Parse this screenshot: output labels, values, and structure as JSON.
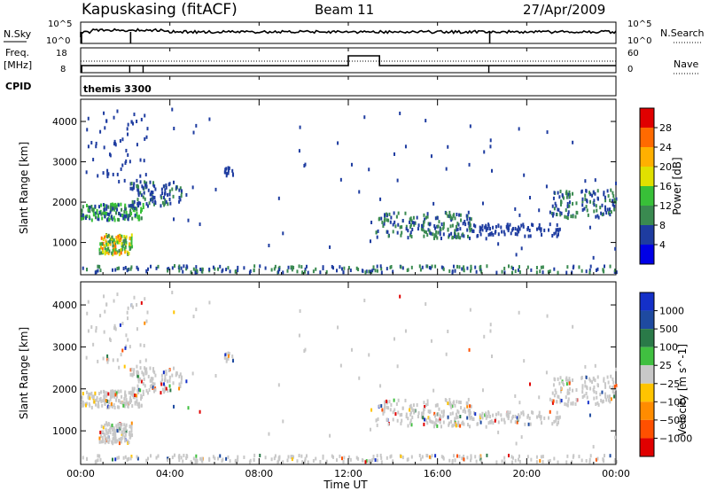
{
  "header": {
    "station": "Kapuskasing (fitACF)",
    "beam": "Beam 11",
    "date": "27/Apr/2009"
  },
  "top_panels": {
    "nsky_label": "N.Sky",
    "nsky_ticks": [
      "10^5",
      "10^0"
    ],
    "nsearch_label": "N.Search",
    "nsearch_ticks": [
      "10^5",
      "10^0"
    ],
    "freq_label_1": "Freq.",
    "freq_label_2": "[MHz]",
    "freq_ticks": [
      "18",
      "8"
    ],
    "nave_label": "Nave",
    "nave_ticks": [
      "60",
      "0"
    ],
    "cpid_label": "CPID",
    "cpid_value": "themis 3300"
  },
  "chart_data": [
    {
      "type": "heatmap",
      "name": "power",
      "ylabel": "Slant Range [km]",
      "xlabel": "",
      "colorbar_label": "Power [dB]",
      "colorbar_ticks": [
        "28",
        "24",
        "20",
        "16",
        "12",
        "8",
        "4"
      ],
      "colorbar_colors": [
        "#e00000",
        "#ff6a00",
        "#ffb000",
        "#e0e000",
        "#38c038",
        "#3a8a50",
        "#1e3ca0",
        "#0000e6"
      ],
      "xlim": [
        0,
        24
      ],
      "ylim": [
        200,
        4550
      ],
      "yticks": [
        "4000",
        "3000",
        "2000",
        "1000"
      ],
      "xticks": [
        "00:00",
        "04:00",
        "08:00",
        "12:00",
        "16:00",
        "20:00",
        "00:00"
      ],
      "grid": false
    },
    {
      "type": "heatmap",
      "name": "velocity",
      "ylabel": "Slant Range [km]",
      "xlabel": "Time UT",
      "colorbar_label": "Velocity [m s^-1]",
      "colorbar_ticks": [
        "1000",
        "500",
        "100",
        "25",
        "−25",
        "−100",
        "−500",
        "−1000"
      ],
      "colorbar_colors": [
        "#1430c8",
        "#1e4aa0",
        "#2a7a48",
        "#40c040",
        "#c8c8c8",
        "#ffc400",
        "#ff8c00",
        "#ff5000",
        "#e00000"
      ],
      "xlim": [
        0,
        24
      ],
      "ylim": [
        200,
        4550
      ],
      "yticks": [
        "4000",
        "3000",
        "2000",
        "1000"
      ],
      "xticks": [
        "00:00",
        "04:00",
        "08:00",
        "12:00",
        "16:00",
        "20:00",
        "00:00"
      ],
      "grid": false
    }
  ]
}
